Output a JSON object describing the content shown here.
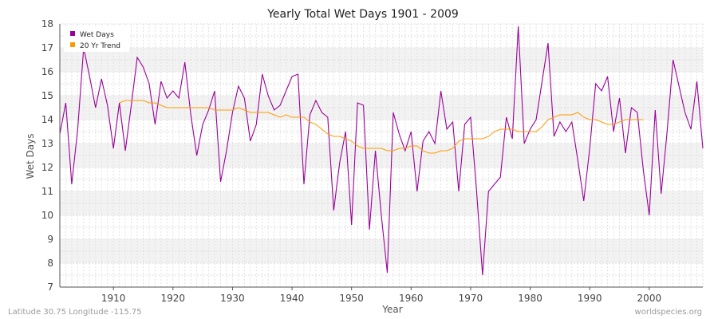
{
  "chart_data": {
    "type": "line",
    "title": "Yearly Total Wet Days 1901 - 2009",
    "xlabel": "Year",
    "ylabel": "Wet Days",
    "xlim": [
      1901,
      2009
    ],
    "ylim": [
      7,
      18
    ],
    "x_ticks": [
      "1910",
      "1920",
      "1930",
      "1940",
      "1950",
      "1960",
      "1970",
      "1980",
      "1990",
      "2000"
    ],
    "y_ticks": [
      "7",
      "8",
      "9",
      "10",
      "11",
      "12",
      "13",
      "14",
      "15",
      "16",
      "17",
      "18"
    ],
    "grid": true,
    "legend_position": "top-left",
    "series": [
      {
        "name": "Wet Days",
        "color": "#990099",
        "x": [
          1901,
          1902,
          1903,
          1904,
          1905,
          1906,
          1907,
          1908,
          1909,
          1910,
          1911,
          1912,
          1913,
          1914,
          1915,
          1916,
          1917,
          1918,
          1919,
          1920,
          1921,
          1922,
          1923,
          1924,
          1925,
          1926,
          1927,
          1928,
          1929,
          1930,
          1931,
          1932,
          1933,
          1934,
          1935,
          1936,
          1937,
          1938,
          1939,
          1940,
          1941,
          1942,
          1943,
          1944,
          1945,
          1946,
          1947,
          1948,
          1949,
          1950,
          1951,
          1952,
          1953,
          1954,
          1955,
          1956,
          1957,
          1958,
          1959,
          1960,
          1961,
          1962,
          1963,
          1964,
          1965,
          1966,
          1967,
          1968,
          1969,
          1970,
          1971,
          1972,
          1973,
          1974,
          1975,
          1976,
          1977,
          1978,
          1979,
          1980,
          1981,
          1982,
          1983,
          1984,
          1985,
          1986,
          1987,
          1988,
          1989,
          1990,
          1991,
          1992,
          1993,
          1994,
          1995,
          1996,
          1997,
          1998,
          1999,
          2000,
          2001,
          2002,
          2003,
          2004,
          2005,
          2006,
          2007,
          2008,
          2009
        ],
        "values": [
          13.4,
          14.7,
          11.3,
          13.6,
          17.0,
          15.8,
          14.5,
          15.7,
          14.6,
          12.8,
          14.7,
          12.7,
          14.6,
          16.6,
          16.2,
          15.5,
          13.8,
          15.6,
          14.9,
          15.2,
          14.9,
          16.4,
          14.2,
          12.5,
          13.8,
          14.4,
          15.2,
          11.4,
          12.7,
          14.3,
          15.4,
          14.9,
          13.1,
          13.8,
          15.9,
          15.0,
          14.4,
          14.6,
          15.2,
          15.8,
          15.9,
          11.3,
          14.2,
          14.8,
          14.3,
          14.1,
          10.2,
          12.2,
          13.5,
          9.6,
          14.7,
          14.6,
          9.4,
          12.7,
          10.0,
          7.6,
          14.3,
          13.4,
          12.7,
          13.5,
          11.0,
          13.1,
          13.5,
          13.0,
          15.2,
          13.6,
          13.9,
          11.0,
          13.8,
          14.1,
          11.0,
          7.5,
          11.0,
          11.3,
          11.6,
          14.1,
          13.2,
          17.9,
          13.0,
          13.6,
          14.0,
          15.6,
          17.2,
          13.3,
          13.9,
          13.5,
          13.9,
          12.3,
          10.6,
          12.8,
          15.5,
          15.2,
          15.8,
          13.5,
          14.9,
          12.6,
          14.5,
          14.3,
          11.9,
          10.0,
          14.4,
          10.9,
          13.5,
          16.5,
          15.4,
          14.3,
          13.6,
          15.6,
          12.8
        ]
      },
      {
        "name": "20 Yr Trend",
        "color": "#ff9900",
        "x": [
          1911,
          1912,
          1913,
          1914,
          1915,
          1916,
          1917,
          1918,
          1919,
          1920,
          1921,
          1922,
          1923,
          1924,
          1925,
          1926,
          1927,
          1928,
          1929,
          1930,
          1931,
          1932,
          1933,
          1934,
          1935,
          1936,
          1937,
          1938,
          1939,
          1940,
          1941,
          1942,
          1943,
          1944,
          1945,
          1946,
          1947,
          1948,
          1949,
          1950,
          1951,
          1952,
          1953,
          1954,
          1955,
          1956,
          1957,
          1958,
          1959,
          1960,
          1961,
          1962,
          1963,
          1964,
          1965,
          1966,
          1967,
          1968,
          1969,
          1970,
          1971,
          1972,
          1973,
          1974,
          1975,
          1976,
          1977,
          1978,
          1979,
          1980,
          1981,
          1982,
          1983,
          1984,
          1985,
          1986,
          1987,
          1988,
          1989,
          1990,
          1991,
          1992,
          1993,
          1994,
          1995,
          1996,
          1997,
          1998,
          1999
        ],
        "values": [
          14.7,
          14.8,
          14.8,
          14.8,
          14.8,
          14.7,
          14.7,
          14.6,
          14.5,
          14.5,
          14.5,
          14.5,
          14.5,
          14.5,
          14.5,
          14.5,
          14.4,
          14.4,
          14.4,
          14.4,
          14.5,
          14.4,
          14.3,
          14.3,
          14.3,
          14.3,
          14.2,
          14.1,
          14.2,
          14.1,
          14.1,
          14.1,
          13.9,
          13.8,
          13.6,
          13.4,
          13.3,
          13.3,
          13.2,
          13.1,
          12.9,
          12.8,
          12.8,
          12.8,
          12.8,
          12.7,
          12.7,
          12.8,
          12.8,
          12.9,
          12.9,
          12.7,
          12.6,
          12.6,
          12.7,
          12.7,
          12.8,
          13.1,
          13.2,
          13.2,
          13.2,
          13.2,
          13.3,
          13.5,
          13.6,
          13.6,
          13.6,
          13.5,
          13.5,
          13.5,
          13.5,
          13.7,
          14.0,
          14.1,
          14.2,
          14.2,
          14.2,
          14.3,
          14.1,
          14.0,
          14.0,
          13.9,
          13.8,
          13.8,
          13.9,
          14.0,
          14.0,
          14.0,
          14.0
        ]
      }
    ]
  },
  "footer": {
    "location": "Latitude 30.75 Longitude -115.75",
    "source": "worldspecies.org"
  }
}
